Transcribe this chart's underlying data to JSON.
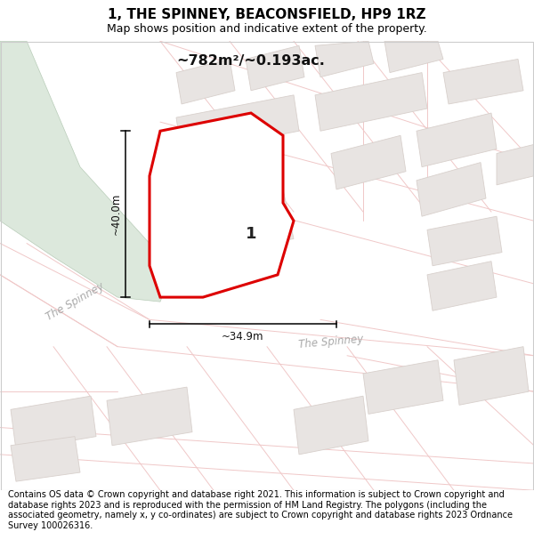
{
  "title": "1, THE SPINNEY, BEACONSFIELD, HP9 1RZ",
  "subtitle": "Map shows position and indicative extent of the property.",
  "area_text": "~782m²/~0.193ac.",
  "label_number": "1",
  "dim_height": "~40.0m",
  "dim_width": "~34.9m",
  "footer": "Contains OS data © Crown copyright and database right 2021. This information is subject to Crown copyright and database rights 2023 and is reproduced with the permission of HM Land Registry. The polygons (including the associated geometry, namely x, y co-ordinates) are subject to Crown copyright and database rights 2023 Ordnance Survey 100026316.",
  "map_bg": "#f7f2f2",
  "plot_fill": "#ffffff",
  "plot_edge": "#dd0000",
  "green_area_color": "#dce8dc",
  "road_color": "#f0c8c8",
  "building_color": "#e8e4e2",
  "building_edge": "#d8d0cc",
  "title_fontsize": 11,
  "subtitle_fontsize": 9,
  "footer_fontsize": 7.0,
  "road_label_color": "#aaaaaa",
  "road_label_size": 8.5
}
